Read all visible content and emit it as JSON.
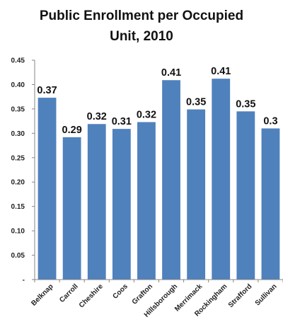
{
  "chart_data": {
    "type": "bar",
    "title_lines": [
      "Public Enrollment per Occupied",
      "Unit, 2010"
    ],
    "categories": [
      "Belknap",
      "Carroll",
      "Cheshire",
      "Coos",
      "Grafton",
      "Hillsborough",
      "Merrimack",
      "Rockingham",
      "Strafford",
      "Sullivan"
    ],
    "values": [
      0.373,
      0.292,
      0.319,
      0.309,
      0.323,
      0.409,
      0.349,
      0.412,
      0.345,
      0.31
    ],
    "data_labels": [
      "0.37",
      "0.29",
      "0.32",
      "0.31",
      "0.32",
      "0.41",
      "0.35",
      "0.41",
      "0.35",
      "0.3"
    ],
    "ylim": [
      0,
      0.45
    ],
    "yticks": [
      0,
      0.05,
      0.1,
      0.15,
      0.2,
      0.25,
      0.3,
      0.35,
      0.4,
      0.45
    ],
    "ytick_labels": [
      "-",
      "0.05",
      "0.10",
      "0.15",
      "0.20",
      "0.25",
      "0.30",
      "0.35",
      "0.40",
      "0.45"
    ],
    "xlabel": "",
    "ylabel": "",
    "grid": false,
    "legend": "none",
    "colors": {
      "bar": "#4f81bd",
      "axis": "#868686"
    }
  }
}
